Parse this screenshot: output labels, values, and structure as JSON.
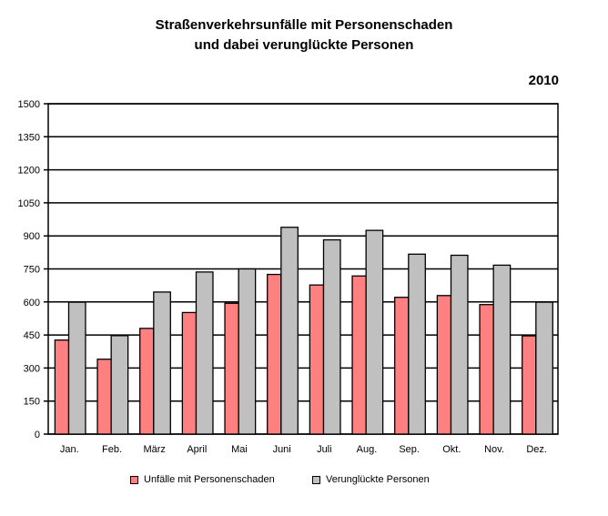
{
  "chart_data": {
    "type": "bar",
    "title": [
      "Straßenverkehrsunfälle mit Personenschaden",
      "und dabei verunglückte Personen"
    ],
    "subtitle": "2010",
    "categories": [
      "Jan.",
      "Feb.",
      "März",
      "April",
      "Mai",
      "Juni",
      "Juli",
      "Aug.",
      "Sep.",
      "Okt.",
      "Nov.",
      "Dez."
    ],
    "series": [
      {
        "name": "Unfälle mit Personenschaden",
        "color": "#ff8080",
        "values": [
          427,
          340,
          480,
          552,
          594,
          725,
          677,
          718,
          621,
          629,
          588,
          446
        ]
      },
      {
        "name": "Verunglückte Personen",
        "color": "#c0c0c0",
        "values": [
          599,
          447,
          645,
          736,
          750,
          939,
          882,
          925,
          817,
          812,
          767,
          599
        ]
      }
    ],
    "ylim": [
      0,
      1500
    ],
    "yticks": [
      "0",
      "150",
      "300",
      "450",
      "600",
      "750",
      "900",
      "1050",
      "1200",
      "1350",
      "1500"
    ],
    "grid": true,
    "legend": "bottom"
  }
}
